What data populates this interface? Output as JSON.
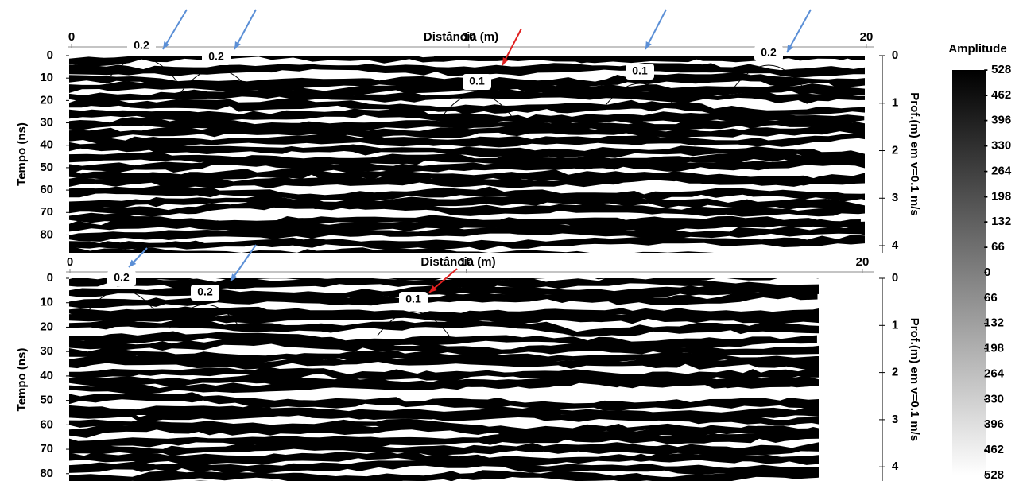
{
  "chart_data": [
    {
      "type": "radargram",
      "xlabel": "Distância (m)",
      "xlim": [
        0,
        20
      ],
      "xticks": [
        0,
        10,
        20
      ],
      "ylabel": "Tempo (ns)",
      "ylim": [
        0,
        88
      ],
      "yticks": [
        0,
        10,
        20,
        30,
        40,
        50,
        60,
        70,
        80
      ],
      "y2label": "Prof.(m) em v=0.1 m/s",
      "y2lim": [
        0,
        4.15
      ],
      "y2ticks": [
        0,
        1,
        2,
        3,
        4
      ],
      "annotations": [
        "0.2",
        "0.2",
        "0.1",
        "0.1",
        "0.2"
      ]
    },
    {
      "type": "radargram",
      "xlabel": "Distância (m)",
      "xlim": [
        0,
        20
      ],
      "xticks": [
        0,
        10,
        20
      ],
      "ylabel": "Tempo (ns)",
      "ylim": [
        0,
        83
      ],
      "yticks": [
        0,
        10,
        20,
        30,
        40,
        50,
        60,
        70,
        80
      ],
      "y2label": "Prof.(m) em v=0.1 m/s",
      "y2lim": [
        0,
        4.3
      ],
      "y2ticks": [
        0,
        1,
        2,
        3,
        4
      ],
      "annotations": [
        "0.2",
        "0.2",
        "0.1"
      ]
    },
    {
      "type": "colorbar",
      "title": "Amplitude",
      "lim": [
        -528,
        528
      ],
      "ticks": [
        {
          "value": -528,
          "label": "- 528"
        },
        {
          "value": -462,
          "label": "- 462"
        },
        {
          "value": -396,
          "label": "- 396"
        },
        {
          "value": -330,
          "label": "- 330"
        },
        {
          "value": -264,
          "label": "- 264"
        },
        {
          "value": -198,
          "label": "- 198"
        },
        {
          "value": -132,
          "label": "- 132"
        },
        {
          "value": -66,
          "label": "- 66"
        },
        0,
        66,
        132,
        198,
        264,
        330,
        396,
        462,
        528
      ]
    }
  ]
}
